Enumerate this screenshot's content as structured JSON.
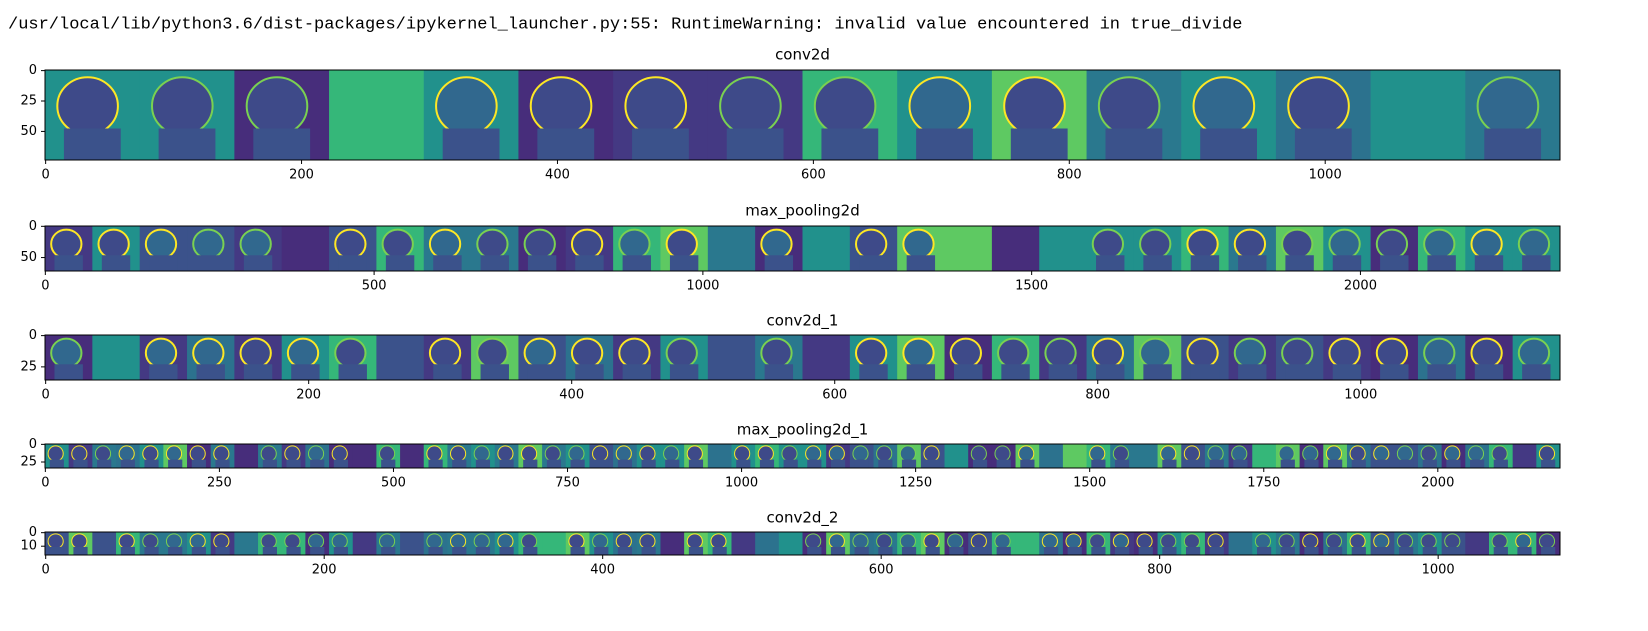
{
  "warning": "/usr/local/lib/python3.6/dist-packages/ipykernel_launcher.py:55: RuntimeWarning: invalid value encountered in true_divide",
  "chart_data": [
    {
      "type": "image",
      "title": "conv2d",
      "xlim": [
        -0.5,
        1183.5
      ],
      "ylim": [
        73.5,
        -0.5
      ],
      "xticks": [
        0,
        200,
        400,
        600,
        800,
        1000
      ],
      "yticks": [
        0,
        25,
        50
      ]
    },
    {
      "type": "image",
      "title": "max_pooling2d",
      "xlim": [
        -0.5,
        2303.5
      ],
      "ylim": [
        71.5,
        -0.5
      ],
      "xticks": [
        0,
        500,
        1000,
        1500,
        2000
      ],
      "yticks": [
        0,
        50
      ]
    },
    {
      "type": "image",
      "title": "conv2d_1",
      "xlim": [
        -0.5,
        1151.5
      ],
      "ylim": [
        35.5,
        -0.5
      ],
      "xticks": [
        0,
        200,
        400,
        600,
        800,
        1000
      ],
      "yticks": [
        0,
        25
      ]
    },
    {
      "type": "image",
      "title": "max_pooling2d_1",
      "xlim": [
        -0.5,
        2175.5
      ],
      "ylim": [
        33.5,
        -0.5
      ],
      "xticks": [
        0,
        250,
        500,
        750,
        1000,
        1250,
        1500,
        1750,
        2000
      ],
      "yticks": [
        0,
        25
      ]
    },
    {
      "type": "image",
      "title": "conv2d_2",
      "xlim": [
        -0.5,
        1087.5
      ],
      "ylim": [
        16.5,
        -0.5
      ],
      "xticks": [
        0,
        200,
        400,
        600,
        800,
        1000
      ],
      "yticks": [
        0,
        10
      ]
    }
  ]
}
